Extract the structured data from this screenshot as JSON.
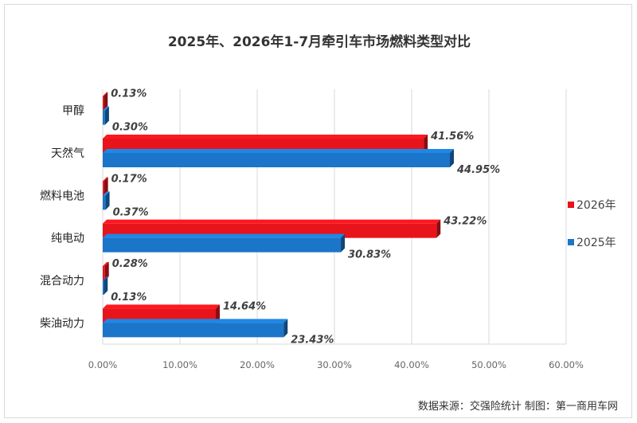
{
  "chart_data": {
    "type": "bar",
    "orientation": "horizontal",
    "title": "2025年、2026年1-7月牵引车市场燃料类型对比",
    "categories": [
      "甲醇",
      "天然气",
      "燃料电池",
      "纯电动",
      "混合动力",
      "柴油动力"
    ],
    "series": [
      {
        "name": "2026年",
        "color": "#e8141b",
        "values": [
          0.13,
          41.56,
          0.17,
          43.22,
          0.28,
          14.64
        ],
        "labels": [
          "0.13%",
          "41.56%",
          "0.17%",
          "43.22%",
          "0.28%",
          "14.64%"
        ]
      },
      {
        "name": "2025年",
        "color": "#1b75c9",
        "values": [
          0.3,
          44.95,
          0.37,
          30.83,
          0.13,
          23.43
        ],
        "labels": [
          "0.30%",
          "44.95%",
          "0.37%",
          "30.83%",
          "0.13%",
          "23.43%"
        ]
      }
    ],
    "xlim": [
      0,
      60
    ],
    "x_ticks": [
      "0.00%",
      "10.00%",
      "20.00%",
      "30.00%",
      "40.00%",
      "50.00%",
      "60.00%"
    ],
    "grid": true,
    "legend_position": "right",
    "source": "数据来源：交强险统计   制图：第一商用车网"
  }
}
